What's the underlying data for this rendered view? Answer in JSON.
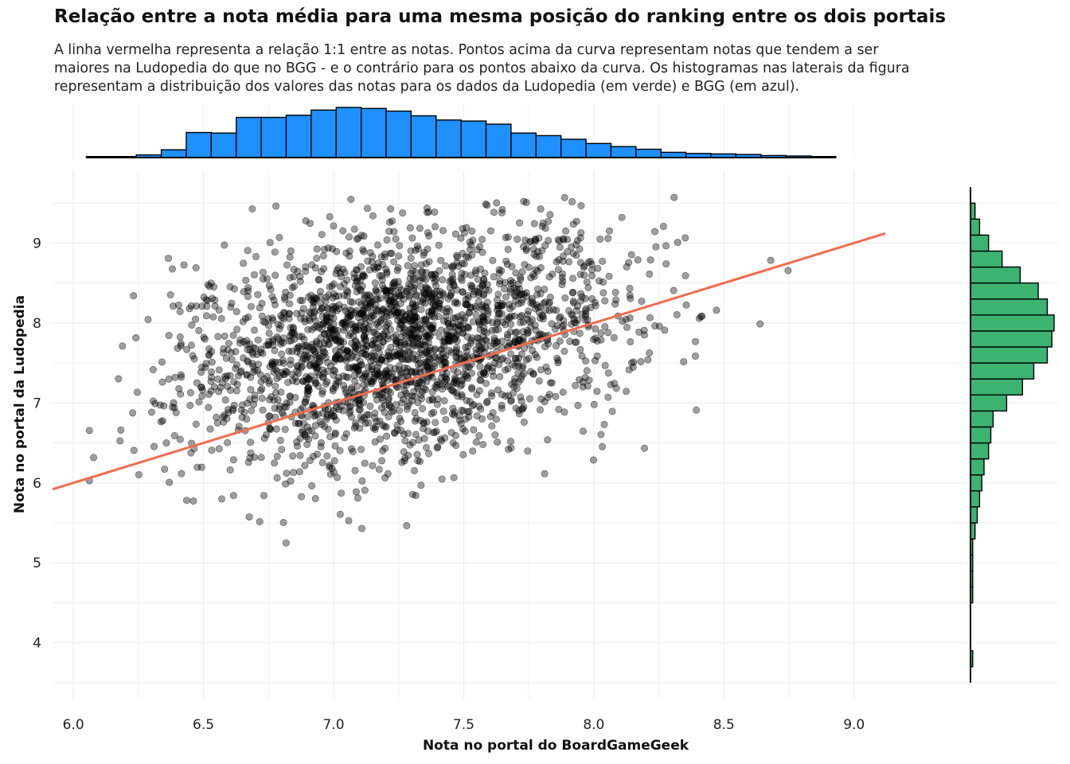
{
  "title": "Relação entre a nota média para uma mesma posição do ranking entre os dois portais",
  "subtitle_lines": [
    "A linha vermelha representa a relação 1:1 entre as notas. Pontos acima da curva representam notas que tendem a ser",
    "maiores na Ludopedia do que no BGG - e o contrário para os pontos abaixo da curva. Os histogramas nas laterais da figura",
    "representam a distribuição dos valores das notas para os dados da Ludopedia (em verde) e BGG (em azul)."
  ],
  "chart_data": {
    "type": "scatter",
    "xlabel": "Nota no portal do BoardGameGeek",
    "ylabel": "Nota no portal da Ludopedia",
    "xlim": [
      5.92,
      9.42
    ],
    "ylim": [
      3.3,
      9.9
    ],
    "x_ticks": [
      "6.0",
      "6.5",
      "7.0",
      "7.5",
      "8.0",
      "8.5",
      "9.0"
    ],
    "y_ticks": [
      "4",
      "5",
      "6",
      "7",
      "8",
      "9"
    ],
    "grid": true,
    "reference_line": {
      "slope": 1,
      "intercept": 0,
      "color": "#F26B4F"
    },
    "point_color": "#000000",
    "n_points_approx": 2400,
    "cluster_center": {
      "x": 7.25,
      "y": 7.75
    },
    "x_histogram": {
      "color": "#1E90FF",
      "bin_start": 6.05,
      "bin_width": 0.096,
      "counts": [
        2,
        2,
        5,
        15,
        48,
        47,
        77,
        77,
        81,
        91,
        96,
        94,
        89,
        80,
        72,
        70,
        64,
        47,
        42,
        35,
        27,
        21,
        16,
        10,
        8,
        7,
        6,
        4,
        3,
        2
      ]
    },
    "y_histogram": {
      "color": "#3CB371",
      "bin_start": 3.5,
      "bin_width": 0.2,
      "counts": [
        0,
        1,
        0,
        0,
        0,
        1,
        1,
        1,
        1,
        2,
        3,
        4,
        5,
        6,
        8,
        9,
        10,
        16,
        23,
        28,
        34,
        36,
        37,
        34,
        30,
        22,
        14,
        8,
        4,
        2,
        0
      ]
    }
  }
}
